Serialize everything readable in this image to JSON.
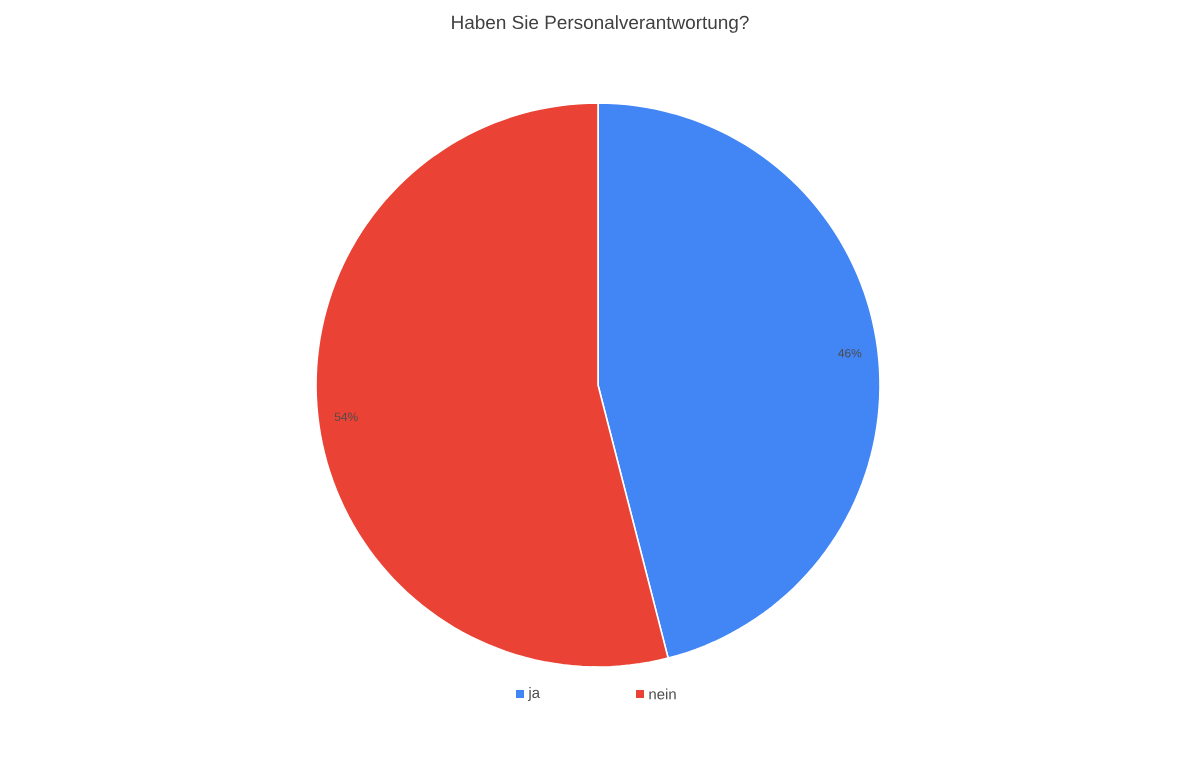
{
  "chart_data": {
    "type": "pie",
    "title": "Haben Sie Personalverantwortung?",
    "categories": [
      "ja",
      "nein"
    ],
    "values": [
      46,
      54
    ],
    "colors": [
      "#4285f4",
      "#ea4335"
    ],
    "value_labels": [
      "46%",
      "54%"
    ],
    "legend": "bottom"
  }
}
